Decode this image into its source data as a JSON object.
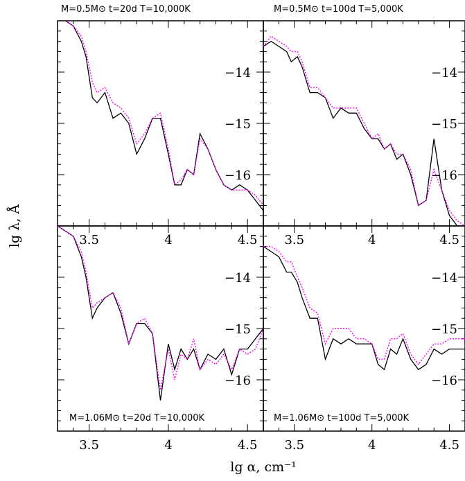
{
  "figure": {
    "ylabel": "lg λ, Å",
    "xlabel": "lg α, cm⁻¹"
  },
  "chart_data": [
    {
      "type": "line",
      "title": "M=0.5M⊙ t=20d  T=10,000K",
      "xlim": [
        3.3,
        4.6
      ],
      "ylim": [
        -17,
        -13
      ],
      "xticks": [
        3.5,
        4,
        4.5
      ],
      "xticklabels": [
        "3.5",
        "4",
        "4.5"
      ],
      "yticks": [
        -14,
        -15,
        -16
      ],
      "yticklabels": [
        "−14",
        "−15",
        "−16"
      ],
      "series": [
        {
          "style": "solid",
          "color": "#000000",
          "x": [
            3.3,
            3.35,
            3.4,
            3.45,
            3.48,
            3.52,
            3.55,
            3.6,
            3.65,
            3.7,
            3.75,
            3.8,
            3.85,
            3.9,
            3.95,
            4.0,
            4.04,
            4.08,
            4.12,
            4.16,
            4.2,
            4.25,
            4.3,
            4.35,
            4.4,
            4.45,
            4.5,
            4.55,
            4.6
          ],
          "y": [
            -12.9,
            -13.0,
            -13.1,
            -13.4,
            -13.7,
            -14.5,
            -14.6,
            -14.4,
            -14.9,
            -14.8,
            -15.0,
            -15.6,
            -15.3,
            -14.9,
            -14.9,
            -15.6,
            -16.2,
            -16.2,
            -15.9,
            -16.0,
            -15.2,
            -15.5,
            -15.9,
            -16.2,
            -16.3,
            -16.2,
            -16.3,
            -16.5,
            -16.7
          ]
        },
        {
          "style": "dotted",
          "color": "#ff00ff",
          "x": [
            3.3,
            3.35,
            3.4,
            3.45,
            3.48,
            3.52,
            3.55,
            3.6,
            3.65,
            3.7,
            3.75,
            3.8,
            3.85,
            3.9,
            3.95,
            4.0,
            4.04,
            4.08,
            4.12,
            4.16,
            4.2,
            4.25,
            4.3,
            4.35,
            4.4,
            4.45,
            4.5,
            4.55,
            4.6
          ],
          "y": [
            -12.9,
            -13.0,
            -13.1,
            -13.3,
            -13.6,
            -14.2,
            -14.4,
            -14.3,
            -14.6,
            -14.7,
            -14.9,
            -15.4,
            -15.2,
            -14.9,
            -14.8,
            -15.5,
            -16.2,
            -16.1,
            -15.9,
            -16.0,
            -15.3,
            -15.5,
            -15.9,
            -16.2,
            -16.3,
            -16.3,
            -16.3,
            -16.4,
            -16.6
          ]
        }
      ]
    },
    {
      "type": "line",
      "title": "M=0.5M⊙ t=100d  T=5,000K",
      "xlim": [
        3.3,
        4.6
      ],
      "ylim": [
        -17,
        -13
      ],
      "xticks": [
        3.5,
        4,
        4.5
      ],
      "xticklabels": [
        "3.5",
        "4",
        "4.5"
      ],
      "yticks": [
        -14,
        -15,
        -16
      ],
      "yticklabels": [
        "−14",
        "−15",
        "−16"
      ],
      "series": [
        {
          "style": "solid",
          "color": "#000000",
          "x": [
            3.3,
            3.35,
            3.4,
            3.45,
            3.48,
            3.52,
            3.55,
            3.6,
            3.65,
            3.7,
            3.75,
            3.8,
            3.85,
            3.9,
            3.95,
            4.0,
            4.04,
            4.08,
            4.12,
            4.16,
            4.2,
            4.25,
            4.3,
            4.35,
            4.4,
            4.45,
            4.5,
            4.55,
            4.6
          ],
          "y": [
            -13.5,
            -13.4,
            -13.5,
            -13.6,
            -13.8,
            -13.7,
            -13.9,
            -14.4,
            -14.4,
            -14.5,
            -14.9,
            -14.7,
            -14.8,
            -14.8,
            -15.1,
            -15.3,
            -15.3,
            -15.5,
            -15.4,
            -15.7,
            -15.6,
            -16.0,
            -16.6,
            -16.5,
            -15.3,
            -16.3,
            -16.8,
            -17.0,
            -17.0
          ]
        },
        {
          "style": "dotted",
          "color": "#ff00ff",
          "x": [
            3.3,
            3.35,
            3.4,
            3.45,
            3.48,
            3.52,
            3.55,
            3.6,
            3.65,
            3.7,
            3.75,
            3.8,
            3.85,
            3.9,
            3.95,
            4.0,
            4.04,
            4.08,
            4.12,
            4.16,
            4.2,
            4.25,
            4.3,
            4.35,
            4.4,
            4.45,
            4.5,
            4.55,
            4.6
          ],
          "y": [
            -13.5,
            -13.3,
            -13.4,
            -13.5,
            -13.6,
            -13.6,
            -13.8,
            -14.3,
            -14.3,
            -14.5,
            -14.7,
            -14.7,
            -14.7,
            -14.7,
            -15.0,
            -15.3,
            -15.2,
            -15.5,
            -15.4,
            -15.6,
            -15.6,
            -15.9,
            -16.6,
            -16.5,
            -15.9,
            -16.3,
            -16.7,
            -16.9,
            -17.0
          ]
        }
      ]
    },
    {
      "type": "line",
      "title": "M=1.06M⊙ t=20d  T=10,000K",
      "xlim": [
        3.3,
        4.6
      ],
      "ylim": [
        -17,
        -13
      ],
      "xticks": [
        3.5,
        4,
        4.5
      ],
      "xticklabels": [
        "3.5",
        "4",
        "4.5"
      ],
      "yticks": [
        -14,
        -15,
        -16
      ],
      "yticklabels": [
        "−14",
        "−15",
        "−16"
      ],
      "series": [
        {
          "style": "solid",
          "color": "#000000",
          "x": [
            3.3,
            3.35,
            3.4,
            3.45,
            3.48,
            3.52,
            3.55,
            3.6,
            3.65,
            3.7,
            3.75,
            3.8,
            3.85,
            3.9,
            3.95,
            4.0,
            4.04,
            4.08,
            4.12,
            4.16,
            4.2,
            4.25,
            4.3,
            4.35,
            4.4,
            4.45,
            4.5,
            4.55,
            4.6
          ],
          "y": [
            -13.0,
            -13.1,
            -13.2,
            -13.6,
            -14.0,
            -14.8,
            -14.6,
            -14.4,
            -14.3,
            -14.7,
            -15.3,
            -14.9,
            -14.9,
            -15.1,
            -16.4,
            -15.3,
            -15.8,
            -15.4,
            -15.6,
            -15.4,
            -15.8,
            -15.5,
            -15.6,
            -15.4,
            -15.9,
            -15.4,
            -15.4,
            -15.2,
            -15.0
          ]
        },
        {
          "style": "dotted",
          "color": "#ff00ff",
          "x": [
            3.3,
            3.35,
            3.4,
            3.45,
            3.48,
            3.52,
            3.55,
            3.6,
            3.65,
            3.7,
            3.75,
            3.8,
            3.85,
            3.9,
            3.95,
            4.0,
            4.04,
            4.08,
            4.12,
            4.16,
            4.2,
            4.25,
            4.3,
            4.35,
            4.4,
            4.45,
            4.5,
            4.55,
            4.6
          ],
          "y": [
            -13.0,
            -13.1,
            -13.2,
            -13.5,
            -13.9,
            -14.6,
            -14.5,
            -14.4,
            -14.3,
            -14.6,
            -15.3,
            -14.9,
            -14.8,
            -15.1,
            -16.2,
            -15.4,
            -16.0,
            -15.5,
            -15.6,
            -15.2,
            -15.8,
            -15.6,
            -15.7,
            -15.5,
            -15.8,
            -15.4,
            -15.5,
            -15.4,
            -15.0
          ]
        }
      ]
    },
    {
      "type": "line",
      "title": "M=1.06M⊙ t=100d  T=5,000K",
      "xlim": [
        3.3,
        4.6
      ],
      "ylim": [
        -17,
        -13
      ],
      "xticks": [
        3.5,
        4,
        4.5
      ],
      "xticklabels": [
        "3.5",
        "4",
        "4.5"
      ],
      "yticks": [
        -14,
        -15,
        -16
      ],
      "yticklabels": [
        "−14",
        "−15",
        "−16"
      ],
      "series": [
        {
          "style": "solid",
          "color": "#000000",
          "x": [
            3.3,
            3.35,
            3.4,
            3.45,
            3.48,
            3.52,
            3.55,
            3.6,
            3.65,
            3.7,
            3.75,
            3.8,
            3.85,
            3.9,
            3.95,
            4.0,
            4.04,
            4.08,
            4.12,
            4.16,
            4.2,
            4.25,
            4.3,
            4.35,
            4.4,
            4.45,
            4.5,
            4.55,
            4.6
          ],
          "y": [
            -13.4,
            -13.5,
            -13.6,
            -13.9,
            -13.9,
            -14.1,
            -14.4,
            -14.8,
            -14.8,
            -15.6,
            -15.2,
            -15.3,
            -15.2,
            -15.3,
            -15.3,
            -15.3,
            -15.7,
            -15.8,
            -15.4,
            -15.5,
            -15.2,
            -15.6,
            -15.8,
            -15.7,
            -15.4,
            -15.5,
            -15.4,
            -15.4,
            -15.4
          ]
        },
        {
          "style": "dotted",
          "color": "#ff00ff",
          "x": [
            3.3,
            3.35,
            3.4,
            3.45,
            3.48,
            3.52,
            3.55,
            3.6,
            3.65,
            3.7,
            3.75,
            3.8,
            3.85,
            3.9,
            3.95,
            4.0,
            4.04,
            4.08,
            4.12,
            4.16,
            4.2,
            4.25,
            4.3,
            4.35,
            4.4,
            4.45,
            4.5,
            4.55,
            4.6
          ],
          "y": [
            -13.4,
            -13.4,
            -13.5,
            -13.7,
            -13.7,
            -14.0,
            -14.2,
            -14.6,
            -14.7,
            -15.3,
            -15.0,
            -15.0,
            -15.0,
            -15.2,
            -15.2,
            -15.3,
            -15.6,
            -15.6,
            -15.2,
            -15.2,
            -15.1,
            -15.5,
            -15.7,
            -15.5,
            -15.3,
            -15.3,
            -15.2,
            -15.2,
            -15.2
          ]
        }
      ]
    }
  ]
}
